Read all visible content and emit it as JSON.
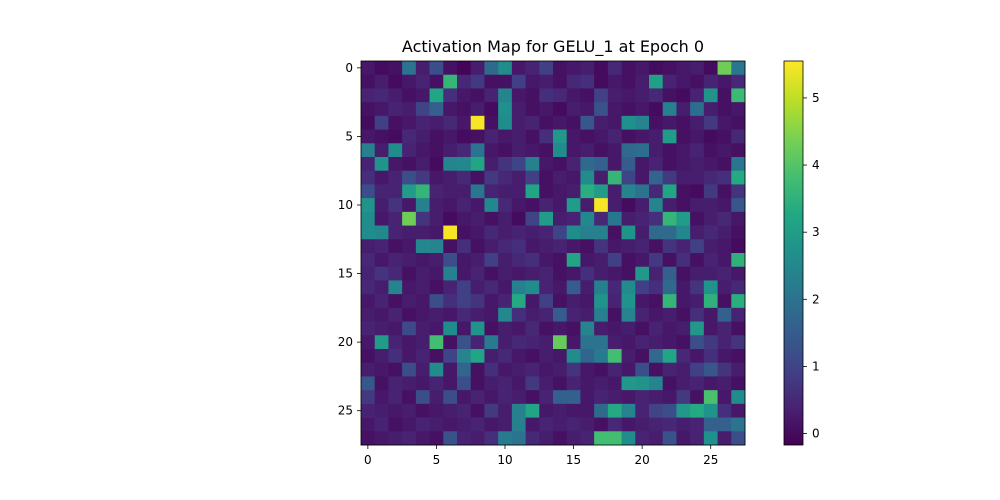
{
  "chart_data": {
    "type": "heatmap",
    "title": "Activation Map for GELU_1 at Epoch 0",
    "xlabel": "",
    "ylabel": "",
    "rows": 28,
    "cols": 28,
    "x_ticks": [
      0,
      5,
      10,
      15,
      20,
      25
    ],
    "y_ticks": [
      0,
      5,
      10,
      15,
      20,
      25
    ],
    "colorbar": {
      "min": -0.17,
      "max": 5.55,
      "ticks": [
        0,
        1,
        2,
        3,
        4,
        5
      ],
      "colormap": "viridis"
    },
    "grid": false,
    "values": [
      [
        0.2,
        0.0,
        0.1,
        2.0,
        0.3,
        1.2,
        0.1,
        -0.1,
        0.3,
        1.8,
        2.6,
        0.2,
        0.4,
        0.9,
        0.1,
        0.2,
        0.3,
        0.0,
        0.5,
        0.1,
        0.2,
        0.0,
        0.1,
        0.2,
        0.3,
        0.0,
        4.3,
        2.1
      ],
      [
        0.1,
        0.3,
        0.0,
        0.2,
        0.4,
        0.1,
        3.6,
        0.5,
        0.8,
        0.1,
        0.1,
        0.9,
        0.2,
        0.3,
        0.1,
        0.5,
        0.6,
        0.0,
        0.2,
        0.1,
        0.3,
        3.1,
        0.4,
        0.2,
        0.1,
        0.4,
        0.2,
        0.5
      ],
      [
        0.4,
        0.5,
        0.3,
        0.1,
        0.2,
        3.2,
        0.6,
        0.2,
        0.1,
        0.4,
        2.4,
        0.2,
        0.1,
        0.6,
        0.5,
        0.2,
        0.1,
        0.9,
        0.3,
        0.2,
        0.3,
        0.5,
        0.1,
        0.0,
        0.4,
        2.8,
        0.1,
        3.7
      ],
      [
        0.1,
        0.2,
        0.4,
        0.3,
        1.0,
        1.6,
        0.2,
        0.1,
        0.3,
        0.0,
        2.7,
        0.3,
        0.1,
        0.2,
        0.0,
        0.3,
        0.2,
        1.3,
        0.2,
        0.1,
        0.2,
        0.0,
        2.3,
        0.3,
        1.9,
        0.3,
        0.1,
        0.2
      ],
      [
        0.0,
        0.9,
        0.1,
        0.2,
        0.4,
        0.3,
        0.5,
        0.2,
        5.5,
        0.1,
        2.6,
        0.3,
        0.4,
        0.1,
        0.2,
        0.1,
        1.4,
        0.3,
        0.2,
        2.7,
        2.4,
        0.1,
        0.2,
        0.1,
        0.3,
        0.8,
        0.2,
        0.1
      ],
      [
        0.2,
        0.1,
        0.0,
        0.5,
        0.3,
        0.1,
        0.2,
        0.0,
        0.1,
        0.4,
        0.2,
        0.3,
        0.1,
        0.6,
        2.9,
        0.2,
        0.1,
        0.2,
        0.4,
        0.1,
        0.2,
        0.3,
        3.0,
        0.1,
        0.2,
        0.0,
        0.1,
        0.5
      ],
      [
        2.3,
        0.3,
        2.6,
        0.4,
        0.2,
        0.1,
        0.3,
        0.5,
        2.0,
        0.2,
        0.1,
        0.3,
        0.2,
        0.1,
        2.6,
        0.2,
        0.3,
        0.1,
        0.2,
        1.8,
        1.9,
        0.3,
        0.1,
        0.2,
        0.4,
        0.1,
        0.2,
        0.1
      ],
      [
        0.4,
        2.8,
        0.2,
        0.1,
        0.3,
        0.0,
        2.4,
        2.5,
        3.2,
        0.3,
        0.7,
        1.0,
        2.3,
        0.2,
        0.1,
        0.4,
        1.8,
        1.6,
        0.2,
        1.5,
        0.2,
        0.4,
        0.1,
        0.2,
        0.3,
        0.2,
        0.1,
        2.1
      ],
      [
        0.6,
        0.2,
        0.4,
        1.2,
        0.8,
        0.2,
        0.3,
        0.5,
        0.1,
        0.8,
        0.5,
        0.3,
        0.9,
        0.1,
        0.3,
        0.2,
        2.6,
        0.3,
        3.6,
        1.0,
        0.2,
        1.7,
        0.8,
        0.3,
        0.3,
        0.5,
        0.6,
        3.3
      ],
      [
        1.2,
        0.4,
        0.4,
        3.0,
        3.6,
        0.4,
        0.3,
        0.3,
        2.1,
        0.4,
        0.3,
        0.3,
        3.2,
        0.1,
        0.2,
        0.3,
        3.4,
        3.0,
        0.3,
        2.4,
        2.0,
        0.5,
        3.2,
        0.1,
        0.0,
        0.8,
        0.1,
        0.7
      ],
      [
        2.8,
        0.3,
        0.7,
        0.2,
        2.3,
        0.3,
        0.2,
        0.4,
        0.2,
        2.5,
        0.5,
        0.2,
        0.1,
        0.4,
        0.2,
        3.0,
        0.3,
        5.5,
        0.3,
        0.0,
        0.3,
        2.4,
        0.3,
        0.1,
        0.3,
        0.3,
        0.2,
        1.4
      ],
      [
        2.6,
        0.2,
        0.4,
        4.3,
        0.7,
        0.3,
        0.0,
        0.2,
        0.3,
        0.1,
        0.3,
        0.0,
        1.0,
        3.0,
        0.3,
        0.4,
        2.5,
        0.5,
        2.1,
        0.3,
        0.4,
        0.6,
        3.6,
        3.0,
        0.1,
        0.3,
        0.5,
        0.2
      ],
      [
        2.6,
        2.5,
        0.4,
        0.3,
        0.3,
        0.2,
        5.5,
        0.1,
        0.2,
        0.5,
        0.3,
        0.4,
        0.3,
        0.4,
        1.0,
        2.6,
        2.3,
        2.3,
        0.1,
        2.8,
        0.3,
        1.8,
        1.8,
        2.5,
        0.3,
        0.5,
        0.3,
        0.1
      ],
      [
        0.3,
        0.4,
        0.1,
        0.2,
        2.5,
        2.4,
        0.1,
        0.6,
        0.1,
        0.3,
        0.5,
        0.6,
        0.2,
        0.3,
        0.4,
        0.2,
        0.1,
        0.7,
        0.2,
        0.3,
        0.4,
        0.1,
        0.7,
        0.4,
        0.9,
        0.3,
        0.2,
        0.0
      ],
      [
        0.5,
        0.2,
        0.4,
        0.3,
        0.2,
        0.3,
        1.2,
        0.2,
        0.3,
        0.9,
        0.3,
        0.5,
        0.6,
        0.2,
        0.1,
        3.2,
        0.2,
        0.3,
        0.9,
        0.1,
        0.2,
        0.8,
        0.1,
        0.6,
        0.1,
        0.4,
        0.2,
        3.5
      ],
      [
        0.4,
        0.7,
        0.5,
        0.1,
        0.3,
        0.2,
        2.3,
        0.2,
        0.4,
        0.1,
        0.3,
        0.2,
        0.3,
        0.4,
        0.1,
        0.2,
        0.6,
        0.3,
        0.2,
        0.1,
        2.9,
        0.4,
        1.6,
        0.1,
        0.3,
        0.3,
        0.4,
        0.2
      ],
      [
        0.5,
        0.3,
        2.4,
        0.2,
        0.3,
        0.1,
        0.4,
        0.9,
        0.3,
        0.5,
        0.2,
        2.3,
        2.6,
        0.4,
        0.2,
        1.5,
        0.3,
        2.3,
        0.5,
        2.6,
        0.9,
        0.6,
        1.8,
        0.2,
        0.7,
        2.8,
        0.3,
        0.5
      ],
      [
        0.2,
        0.4,
        0.1,
        0.3,
        0.2,
        1.2,
        0.6,
        0.9,
        0.7,
        0.2,
        0.4,
        3.3,
        0.2,
        0.9,
        0.1,
        0.3,
        0.2,
        2.8,
        0.4,
        2.8,
        0.2,
        0.1,
        3.6,
        0.2,
        0.3,
        3.5,
        0.1,
        3.4
      ],
      [
        0.3,
        0.2,
        0.4,
        0.1,
        0.2,
        0.3,
        0.2,
        0.5,
        0.3,
        0.2,
        2.5,
        0.6,
        0.3,
        0.4,
        1.5,
        0.4,
        0.3,
        2.3,
        0.1,
        2.4,
        0.4,
        0.2,
        0.3,
        0.1,
        0.6,
        0.2,
        1.6,
        0.4
      ],
      [
        0.4,
        0.3,
        0.2,
        1.1,
        0.3,
        0.2,
        2.6,
        0.2,
        2.8,
        0.1,
        0.3,
        0.2,
        0.5,
        0.1,
        0.2,
        0.1,
        2.4,
        0.3,
        0.2,
        0.3,
        0.1,
        0.4,
        0.2,
        0.3,
        2.9,
        0.2,
        0.4,
        0.1
      ],
      [
        0.2,
        3.0,
        0.4,
        0.2,
        0.3,
        3.8,
        0.1,
        1.3,
        0.4,
        2.2,
        0.3,
        0.5,
        0.4,
        0.3,
        4.2,
        0.2,
        2.0,
        2.0,
        0.3,
        0.2,
        0.4,
        0.3,
        0.2,
        0.1,
        1.2,
        0.8,
        0.4,
        0.7
      ],
      [
        0.1,
        0.3,
        0.6,
        0.2,
        0.4,
        0.1,
        1.0,
        2.4,
        3.2,
        0.3,
        0.5,
        0.2,
        0.1,
        0.3,
        0.2,
        2.6,
        1.7,
        2.2,
        3.8,
        0.3,
        0.1,
        1.8,
        3.2,
        0.5,
        0.2,
        0.6,
        0.2,
        0.1
      ],
      [
        0.3,
        0.2,
        0.1,
        1.2,
        0.3,
        2.6,
        0.2,
        1.7,
        0.1,
        0.6,
        0.2,
        0.3,
        0.4,
        0.2,
        0.3,
        0.7,
        0.2,
        0.1,
        0.4,
        0.2,
        1.2,
        0.1,
        0.4,
        0.3,
        0.9,
        1.4,
        0.7,
        0.3
      ],
      [
        1.4,
        0.1,
        0.4,
        0.3,
        0.2,
        0.4,
        0.2,
        1.2,
        0.1,
        0.3,
        0.4,
        0.2,
        0.8,
        0.3,
        0.1,
        0.4,
        0.2,
        0.3,
        0.2,
        2.9,
        2.8,
        2.4,
        0.1,
        0.3,
        0.4,
        0.2,
        0.3,
        0.1
      ],
      [
        0.8,
        0.2,
        0.4,
        0.1,
        1.2,
        0.3,
        1.2,
        0.2,
        0.4,
        0.2,
        0.4,
        0.3,
        0.1,
        0.4,
        1.6,
        1.6,
        0.2,
        0.4,
        0.3,
        0.2,
        0.4,
        0.3,
        0.2,
        0.8,
        0.1,
        3.9,
        0.2,
        2.6
      ],
      [
        0.4,
        0.3,
        0.2,
        0.3,
        0.1,
        0.2,
        0.3,
        0.4,
        0.1,
        0.8,
        0.3,
        2.3,
        3.2,
        0.2,
        0.3,
        0.2,
        0.2,
        1.8,
        3.3,
        2.4,
        0.4,
        1.0,
        1.2,
        2.9,
        3.3,
        2.8,
        0.6,
        0.2
      ],
      [
        0.2,
        0.4,
        0.1,
        0.2,
        0.4,
        0.3,
        0.2,
        0.3,
        0.4,
        0.2,
        0.3,
        2.3,
        0.2,
        0.4,
        0.3,
        0.4,
        0.3,
        0.1,
        0.5,
        0.2,
        0.3,
        0.4,
        0.5,
        0.3,
        0.4,
        1.6,
        1.6,
        2.0
      ],
      [
        0.1,
        0.2,
        0.3,
        0.4,
        0.2,
        0.1,
        1.3,
        0.4,
        0.3,
        0.6,
        2.2,
        2.0,
        0.5,
        0.3,
        0.1,
        0.3,
        0.4,
        3.8,
        3.8,
        2.6,
        0.4,
        0.3,
        1.3,
        0.2,
        0.4,
        2.7,
        0.3,
        1.2
      ]
    ]
  }
}
